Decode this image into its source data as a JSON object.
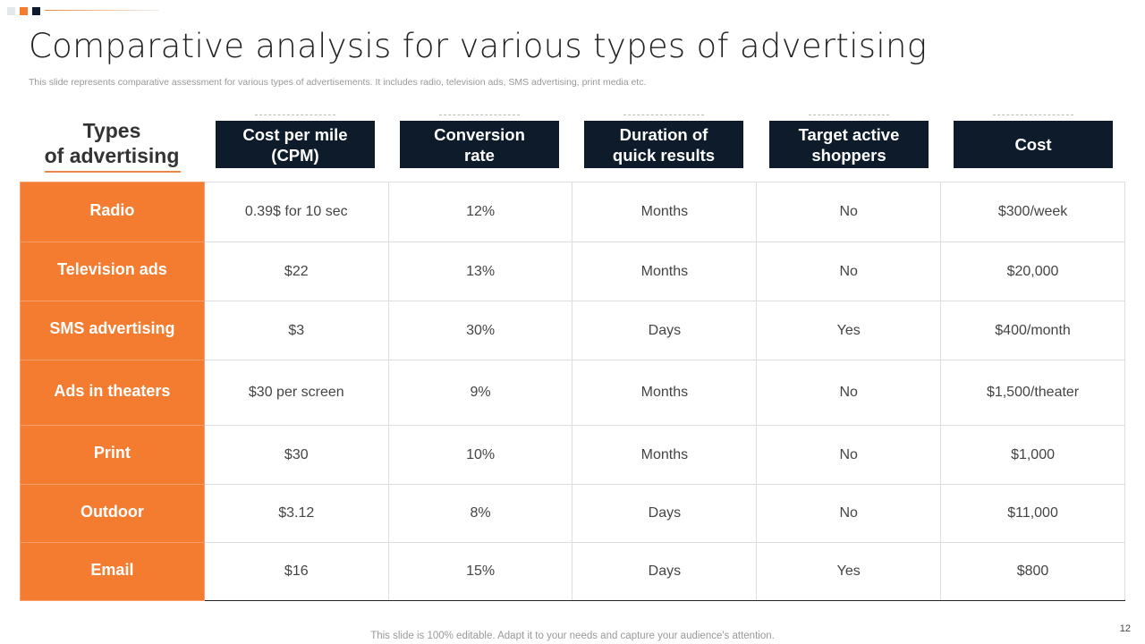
{
  "title": "Comparative analysis for various types of advertising",
  "subtitle": "This slide represents comparative assessment for various types of advertisements. It includes radio, television ads, SMS advertising, print media etc.",
  "row_header_title_line1": "Types",
  "row_header_title_line2": "of advertising",
  "columns": [
    "Cost per mile (CPM)",
    "Conversion rate",
    "Duration of quick results",
    "Target active shoppers",
    "Cost"
  ],
  "rows": [
    {
      "type": "Radio",
      "cells": [
        "0.39$ for 10 sec",
        "12%",
        "Months",
        "No",
        "$300/week"
      ]
    },
    {
      "type": "Television ads",
      "cells": [
        "$22",
        "13%",
        "Months",
        "No",
        "$20,000"
      ]
    },
    {
      "type": "SMS advertising",
      "cells": [
        "$3",
        "30%",
        "Days",
        "Yes",
        "$400/month"
      ]
    },
    {
      "type": "Ads in theaters",
      "cells": [
        "$30 per screen",
        "9%",
        "Months",
        "No",
        "$1,500/theater"
      ]
    },
    {
      "type": "Print",
      "cells": [
        "$30",
        "10%",
        "Months",
        "No",
        "$1,000"
      ]
    },
    {
      "type": "Outdoor",
      "cells": [
        "$3.12",
        "8%",
        "Days",
        "No",
        "$11,000"
      ]
    },
    {
      "type": "Email",
      "cells": [
        "$16",
        "15%",
        "Days",
        "Yes",
        "$800"
      ]
    }
  ],
  "footer": "This slide is 100% editable. Adapt it to your needs and capture your audience's attention.",
  "page_number": "12",
  "colors": {
    "accent": "#f47c30",
    "header": "#0d1b2a"
  }
}
